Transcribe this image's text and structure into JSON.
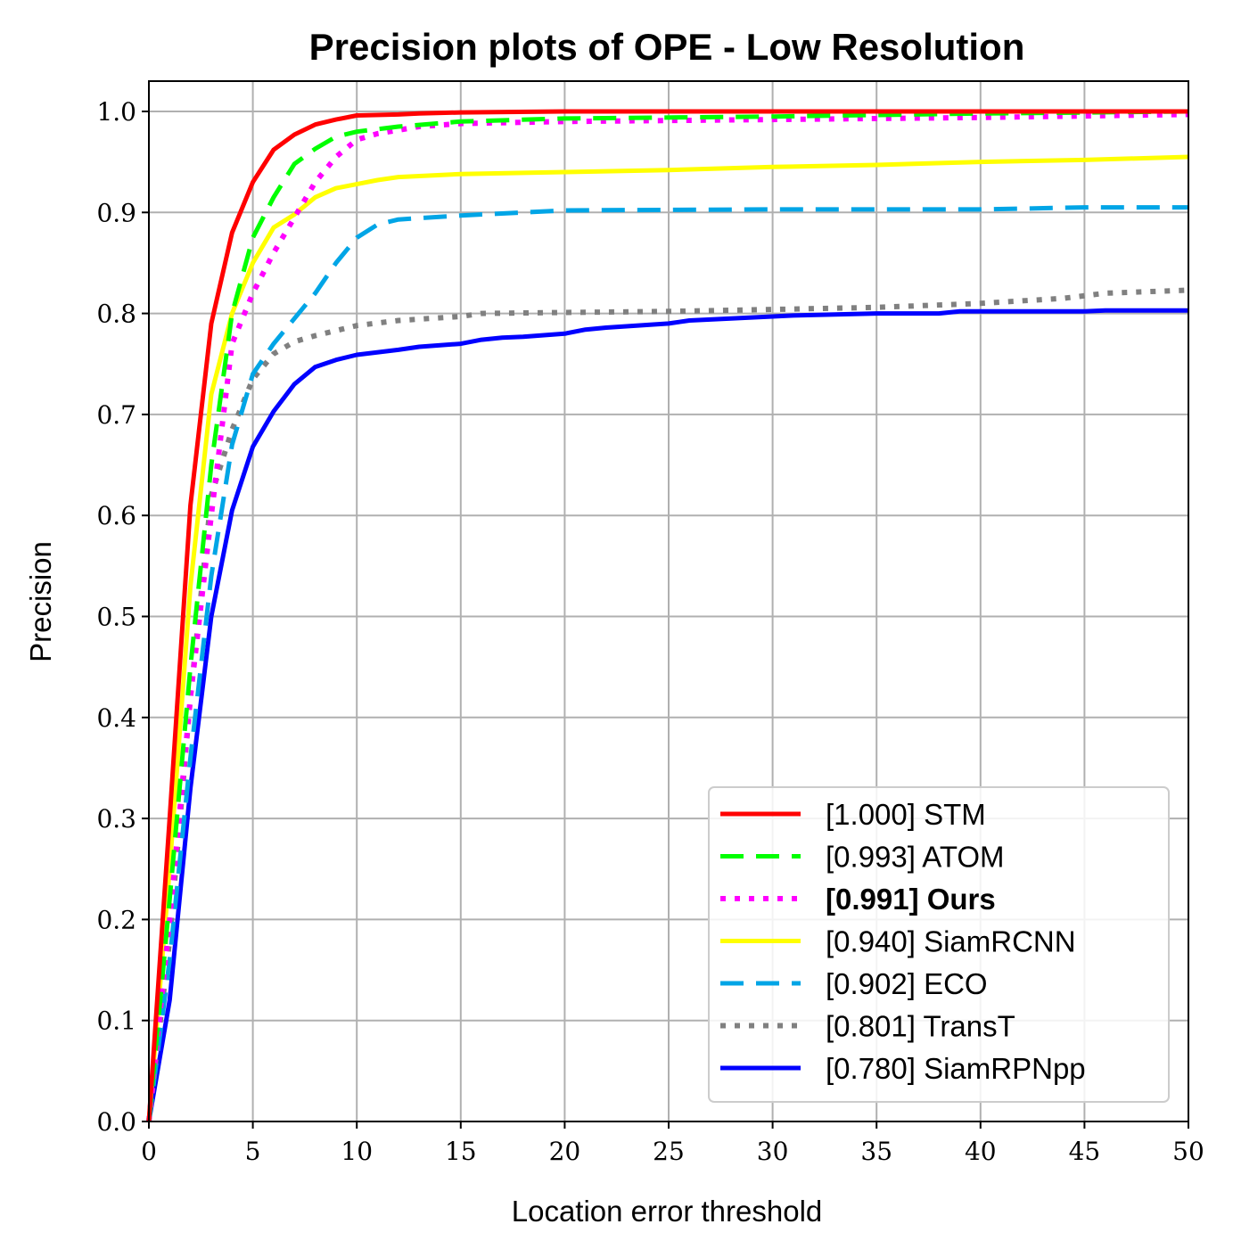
{
  "chart_data": {
    "type": "line",
    "title": "Precision plots of OPE - Low Resolution",
    "xlabel": "Location error threshold",
    "ylabel": "Precision",
    "xlim": [
      0,
      50
    ],
    "ylim": [
      0,
      1.03
    ],
    "x_ticks": [
      "0",
      "5",
      "10",
      "15",
      "20",
      "25",
      "30",
      "35",
      "40",
      "45",
      "50"
    ],
    "y_ticks": [
      "0.0",
      "0.1",
      "0.2",
      "0.3",
      "0.4",
      "0.5",
      "0.6",
      "0.7",
      "0.8",
      "0.9",
      "1.0"
    ],
    "grid": true,
    "legend_position": "bottom-right",
    "series": [
      {
        "name": "[1.000] STM",
        "color": "#ff0000",
        "style": "solid",
        "bold": false,
        "points": [
          [
            0,
            0.0
          ],
          [
            1,
            0.3
          ],
          [
            2,
            0.61
          ],
          [
            3,
            0.79
          ],
          [
            4,
            0.88
          ],
          [
            5,
            0.93
          ],
          [
            6,
            0.962
          ],
          [
            7,
            0.977
          ],
          [
            8,
            0.987
          ],
          [
            9,
            0.992
          ],
          [
            10,
            0.996
          ],
          [
            12,
            0.997
          ],
          [
            13,
            0.998
          ],
          [
            15,
            0.999
          ],
          [
            20,
            1.0
          ],
          [
            50,
            1.0
          ]
        ]
      },
      {
        "name": "[0.993] ATOM",
        "color": "#00ff00",
        "style": "dashed",
        "bold": false,
        "points": [
          [
            0,
            0.0
          ],
          [
            1,
            0.22
          ],
          [
            2,
            0.45
          ],
          [
            3,
            0.65
          ],
          [
            4,
            0.8
          ],
          [
            5,
            0.875
          ],
          [
            6,
            0.915
          ],
          [
            7,
            0.948
          ],
          [
            8,
            0.963
          ],
          [
            9,
            0.975
          ],
          [
            10,
            0.98
          ],
          [
            12,
            0.985
          ],
          [
            15,
            0.99
          ],
          [
            20,
            0.993
          ],
          [
            30,
            0.995
          ],
          [
            40,
            0.998
          ],
          [
            50,
            1.0
          ]
        ]
      },
      {
        "name": "[0.991] Ours",
        "color": "#ff00ff",
        "style": "dotted",
        "bold": true,
        "points": [
          [
            0,
            0.0
          ],
          [
            1,
            0.2
          ],
          [
            2,
            0.42
          ],
          [
            3,
            0.6
          ],
          [
            4,
            0.77
          ],
          [
            5,
            0.82
          ],
          [
            6,
            0.86
          ],
          [
            7,
            0.895
          ],
          [
            8,
            0.93
          ],
          [
            9,
            0.955
          ],
          [
            10,
            0.972
          ],
          [
            11,
            0.978
          ],
          [
            13,
            0.985
          ],
          [
            15,
            0.988
          ],
          [
            20,
            0.99
          ],
          [
            30,
            0.992
          ],
          [
            40,
            0.994
          ],
          [
            50,
            0.997
          ]
        ]
      },
      {
        "name": "[0.940] SiamRCNN",
        "color": "#ffff00",
        "style": "solid",
        "bold": false,
        "points": [
          [
            0,
            0.0
          ],
          [
            1,
            0.25
          ],
          [
            2,
            0.53
          ],
          [
            3,
            0.72
          ],
          [
            4,
            0.8
          ],
          [
            5,
            0.85
          ],
          [
            6,
            0.885
          ],
          [
            7,
            0.898
          ],
          [
            8,
            0.915
          ],
          [
            9,
            0.924
          ],
          [
            10,
            0.928
          ],
          [
            11,
            0.932
          ],
          [
            12,
            0.935
          ],
          [
            15,
            0.938
          ],
          [
            20,
            0.94
          ],
          [
            25,
            0.942
          ],
          [
            30,
            0.945
          ],
          [
            35,
            0.947
          ],
          [
            40,
            0.95
          ],
          [
            45,
            0.952
          ],
          [
            50,
            0.955
          ]
        ]
      },
      {
        "name": "[0.902] ECO",
        "color": "#00a5e6",
        "style": "dashed",
        "bold": false,
        "points": [
          [
            0,
            0.0
          ],
          [
            1,
            0.16
          ],
          [
            2,
            0.36
          ],
          [
            3,
            0.54
          ],
          [
            4,
            0.67
          ],
          [
            5,
            0.74
          ],
          [
            6,
            0.77
          ],
          [
            7,
            0.795
          ],
          [
            8,
            0.82
          ],
          [
            9,
            0.85
          ],
          [
            10,
            0.875
          ],
          [
            11,
            0.888
          ],
          [
            12,
            0.893
          ],
          [
            15,
            0.897
          ],
          [
            20,
            0.902
          ],
          [
            30,
            0.903
          ],
          [
            40,
            0.903
          ],
          [
            45,
            0.905
          ],
          [
            50,
            0.905
          ]
        ]
      },
      {
        "name": "[0.801] TransT",
        "color": "#808080",
        "style": "dotted",
        "bold": false,
        "points": [
          [
            0,
            0.0
          ],
          [
            1,
            0.18
          ],
          [
            2,
            0.42
          ],
          [
            3,
            0.62
          ],
          [
            4,
            0.685
          ],
          [
            5,
            0.735
          ],
          [
            6,
            0.76
          ],
          [
            7,
            0.772
          ],
          [
            8,
            0.778
          ],
          [
            10,
            0.788
          ],
          [
            12,
            0.793
          ],
          [
            15,
            0.797
          ],
          [
            16,
            0.8
          ],
          [
            20,
            0.801
          ],
          [
            25,
            0.802
          ],
          [
            30,
            0.804
          ],
          [
            35,
            0.806
          ],
          [
            40,
            0.81
          ],
          [
            44,
            0.815
          ],
          [
            46,
            0.82
          ],
          [
            50,
            0.823
          ]
        ]
      },
      {
        "name": "[0.780] SiamRPNpp",
        "color": "#0000ff",
        "style": "solid",
        "bold": false,
        "points": [
          [
            0,
            0.0
          ],
          [
            1,
            0.12
          ],
          [
            2,
            0.33
          ],
          [
            3,
            0.5
          ],
          [
            4,
            0.605
          ],
          [
            5,
            0.668
          ],
          [
            6,
            0.703
          ],
          [
            7,
            0.73
          ],
          [
            8,
            0.747
          ],
          [
            9,
            0.754
          ],
          [
            10,
            0.759
          ],
          [
            12,
            0.764
          ],
          [
            13,
            0.767
          ],
          [
            15,
            0.77
          ],
          [
            16,
            0.774
          ],
          [
            17,
            0.776
          ],
          [
            18,
            0.777
          ],
          [
            20,
            0.78
          ],
          [
            21,
            0.784
          ],
          [
            22,
            0.786
          ],
          [
            25,
            0.79
          ],
          [
            26,
            0.793
          ],
          [
            30,
            0.797
          ],
          [
            31,
            0.798
          ],
          [
            35,
            0.8
          ],
          [
            38,
            0.8
          ],
          [
            39,
            0.802
          ],
          [
            45,
            0.802
          ],
          [
            46,
            0.803
          ],
          [
            50,
            0.803
          ]
        ]
      }
    ]
  }
}
